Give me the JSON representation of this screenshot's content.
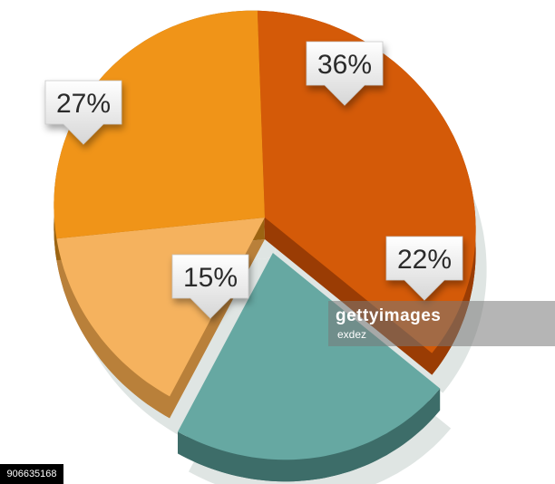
{
  "chart_data": {
    "type": "pie",
    "title": "",
    "slices": [
      {
        "label": "36%",
        "value": 36,
        "color": "#d45a08",
        "side": "#9a3c04",
        "exploded": false
      },
      {
        "label": "22%",
        "value": 22,
        "color": "#66a8a2",
        "side": "#3d6d69",
        "exploded": true
      },
      {
        "label": "15%",
        "value": 15,
        "color": "#f5b25e",
        "side": "#b9803a",
        "exploded": false
      },
      {
        "label": "27%",
        "value": 27,
        "color": "#f09418",
        "side": "#9c6412",
        "exploded": false
      }
    ],
    "legend": "none"
  },
  "watermark": {
    "line1": "gettyimages",
    "line2": "exdez",
    "image_id": "906635168"
  }
}
